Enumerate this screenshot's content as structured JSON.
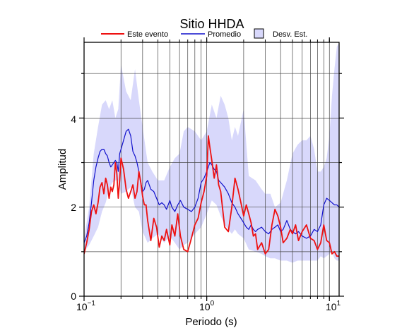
{
  "chart_data": {
    "type": "line",
    "title": "Sitio HHDA",
    "xlabel": "Periodo (s)",
    "ylabel": "Amplitud",
    "x_scale": "log",
    "xlim": [
      0.1,
      12
    ],
    "ylim": [
      0,
      5.7
    ],
    "x_ticks": [
      {
        "base": "10",
        "exp": "−1"
      },
      {
        "base": "10",
        "exp": "0"
      },
      {
        "base": "10",
        "exp": "1"
      }
    ],
    "y_ticks": [
      "0",
      "2",
      "4"
    ],
    "grid": true,
    "legend_position": "top",
    "legend": {
      "event_label": "Este evento",
      "mean_label": "Promedio",
      "std_label": "Desv. Est."
    },
    "colors": {
      "event": "#ee1111",
      "mean": "#1111cc",
      "std_fill": "#d8d8fb",
      "std_stroke": "#000000",
      "grid": "#444444"
    },
    "series": [
      {
        "name": "Este evento",
        "x": [
          0.1,
          0.105,
          0.11,
          0.115,
          0.12,
          0.125,
          0.13,
          0.135,
          0.14,
          0.145,
          0.15,
          0.155,
          0.16,
          0.165,
          0.17,
          0.175,
          0.18,
          0.185,
          0.19,
          0.195,
          0.2,
          0.21,
          0.22,
          0.23,
          0.24,
          0.25,
          0.26,
          0.27,
          0.28,
          0.29,
          0.3,
          0.31,
          0.32,
          0.33,
          0.35,
          0.37,
          0.39,
          0.41,
          0.43,
          0.45,
          0.47,
          0.5,
          0.52,
          0.55,
          0.58,
          0.61,
          0.65,
          0.7,
          0.75,
          0.8,
          0.85,
          0.9,
          0.95,
          1.0,
          1.03,
          1.06,
          1.1,
          1.15,
          1.2,
          1.25,
          1.3,
          1.4,
          1.5,
          1.6,
          1.7,
          1.8,
          1.9,
          2.0,
          2.1,
          2.2,
          2.3,
          2.4,
          2.5,
          2.6,
          2.8,
          3.0,
          3.2,
          3.4,
          3.6,
          3.8,
          4.0,
          4.2,
          4.5,
          4.8,
          5.0,
          5.3,
          5.6,
          6.0,
          6.5,
          7.0,
          7.5,
          8.0,
          8.5,
          9.0,
          9.5,
          10.0,
          10.5,
          11.0,
          11.5,
          12.0
        ],
        "values": [
          0.95,
          1.2,
          1.5,
          1.9,
          2.05,
          1.85,
          2.1,
          2.45,
          2.55,
          2.3,
          2.65,
          2.5,
          2.2,
          2.45,
          2.35,
          2.5,
          3.0,
          2.75,
          2.2,
          2.6,
          3.1,
          2.85,
          2.4,
          2.2,
          2.35,
          2.5,
          2.2,
          2.35,
          2.8,
          2.55,
          2.25,
          2.05,
          2.05,
          1.7,
          1.25,
          1.75,
          1.55,
          1.1,
          1.35,
          1.25,
          1.5,
          1.15,
          1.6,
          1.35,
          1.85,
          1.35,
          1.05,
          1.0,
          1.3,
          1.6,
          1.75,
          2.1,
          2.35,
          2.7,
          3.6,
          3.35,
          3.05,
          2.65,
          2.95,
          2.5,
          2.35,
          1.55,
          1.45,
          2.0,
          2.65,
          2.4,
          2.1,
          1.8,
          2.05,
          1.85,
          1.65,
          1.35,
          1.4,
          1.05,
          1.2,
          0.95,
          1.05,
          1.6,
          1.95,
          1.8,
          1.55,
          1.2,
          1.3,
          1.5,
          1.4,
          1.6,
          1.25,
          1.45,
          1.6,
          1.3,
          1.25,
          1.05,
          1.2,
          1.6,
          1.25,
          1.2,
          0.95,
          1.0,
          0.9,
          0.9
        ]
      },
      {
        "name": "Promedio",
        "x": [
          0.1,
          0.105,
          0.11,
          0.115,
          0.12,
          0.125,
          0.13,
          0.135,
          0.14,
          0.145,
          0.15,
          0.155,
          0.16,
          0.165,
          0.17,
          0.175,
          0.18,
          0.185,
          0.19,
          0.195,
          0.2,
          0.21,
          0.22,
          0.23,
          0.24,
          0.25,
          0.26,
          0.27,
          0.28,
          0.29,
          0.3,
          0.31,
          0.32,
          0.33,
          0.35,
          0.37,
          0.39,
          0.41,
          0.43,
          0.45,
          0.47,
          0.5,
          0.52,
          0.55,
          0.58,
          0.61,
          0.65,
          0.7,
          0.75,
          0.8,
          0.85,
          0.9,
          0.95,
          1.0,
          1.03,
          1.06,
          1.1,
          1.15,
          1.2,
          1.25,
          1.3,
          1.4,
          1.5,
          1.6,
          1.7,
          1.8,
          1.9,
          2.0,
          2.1,
          2.2,
          2.3,
          2.4,
          2.5,
          2.6,
          2.8,
          3.0,
          3.2,
          3.4,
          3.6,
          3.8,
          4.0,
          4.2,
          4.5,
          4.8,
          5.0,
          5.3,
          5.6,
          6.0,
          6.5,
          7.0,
          7.5,
          8.0,
          8.5,
          9.0,
          9.5,
          10.0,
          10.5,
          11.0,
          11.5,
          12.0
        ],
        "values": [
          1.2,
          1.35,
          1.65,
          2.1,
          2.6,
          2.9,
          3.1,
          3.25,
          3.3,
          3.3,
          3.2,
          3.15,
          3.0,
          2.9,
          2.95,
          3.0,
          3.05,
          3.0,
          2.8,
          3.2,
          3.3,
          3.5,
          3.7,
          3.75,
          3.6,
          3.25,
          3.15,
          3.0,
          2.8,
          2.55,
          2.35,
          2.4,
          2.55,
          2.6,
          2.4,
          2.35,
          2.2,
          2.05,
          2.1,
          2.05,
          1.95,
          2.15,
          2.0,
          1.9,
          2.05,
          2.15,
          2.0,
          1.95,
          1.9,
          2.0,
          2.2,
          2.55,
          2.65,
          2.8,
          2.9,
          3.0,
          2.95,
          2.85,
          2.8,
          2.6,
          2.55,
          2.45,
          2.3,
          2.1,
          2.0,
          1.85,
          1.75,
          1.65,
          1.55,
          1.5,
          1.6,
          1.5,
          1.45,
          1.5,
          1.55,
          1.45,
          1.4,
          1.5,
          1.55,
          1.6,
          1.45,
          1.5,
          1.7,
          1.5,
          1.45,
          1.4,
          1.45,
          1.35,
          1.3,
          1.35,
          1.5,
          1.45,
          1.6,
          2.05,
          2.2,
          2.15,
          2.1,
          2.05,
          2.05,
          2.0
        ]
      },
      {
        "name": "Desv. Est.",
        "type": "band",
        "x": [
          0.1,
          0.11,
          0.12,
          0.13,
          0.14,
          0.15,
          0.16,
          0.17,
          0.18,
          0.19,
          0.2,
          0.22,
          0.24,
          0.26,
          0.28,
          0.3,
          0.33,
          0.36,
          0.4,
          0.45,
          0.5,
          0.55,
          0.6,
          0.65,
          0.7,
          0.8,
          0.9,
          1.0,
          1.1,
          1.2,
          1.3,
          1.4,
          1.5,
          1.6,
          1.7,
          1.8,
          2.0,
          2.2,
          2.5,
          2.8,
          3.0,
          3.3,
          3.6,
          4.0,
          4.5,
          5.0,
          5.5,
          6.0,
          6.5,
          7.0,
          7.5,
          8.0,
          8.5,
          9.0,
          9.5,
          10.0,
          10.5,
          11.0,
          11.5,
          12.0
        ],
        "upper": [
          1.3,
          2.0,
          3.2,
          3.8,
          4.3,
          4.4,
          4.2,
          4.4,
          4.0,
          4.2,
          5.2,
          4.6,
          4.4,
          5.1,
          4.4,
          3.8,
          3.0,
          2.8,
          2.6,
          2.6,
          2.9,
          3.1,
          3.2,
          3.7,
          3.8,
          3.7,
          3.5,
          3.7,
          4.3,
          4.0,
          4.5,
          4.3,
          4.0,
          3.5,
          3.8,
          3.6,
          4.2,
          2.7,
          2.6,
          2.4,
          2.3,
          2.3,
          2.0,
          2.1,
          2.6,
          3.2,
          3.4,
          3.5,
          3.5,
          3.6,
          3.3,
          2.8,
          2.8,
          2.9,
          3.1,
          3.6,
          4.5,
          5.1,
          5.6,
          5.7
        ],
        "lower": [
          1.0,
          1.15,
          1.35,
          1.55,
          1.9,
          2.1,
          2.4,
          2.55,
          2.6,
          2.6,
          2.3,
          2.35,
          2.45,
          2.0,
          1.9,
          1.45,
          1.2,
          1.3,
          1.4,
          1.2,
          1.35,
          1.2,
          1.05,
          1.15,
          1.2,
          1.4,
          1.55,
          1.85,
          2.15,
          2.05,
          1.8,
          1.6,
          1.5,
          1.4,
          1.5,
          1.4,
          1.3,
          1.05,
          1.0,
          0.95,
          0.9,
          0.85,
          0.85,
          0.8,
          0.8,
          0.75,
          0.8,
          0.8,
          0.8,
          0.8,
          0.8,
          0.8,
          0.9,
          0.85,
          0.9,
          0.95,
          1.0,
          0.85,
          0.8,
          0.8
        ]
      }
    ]
  }
}
